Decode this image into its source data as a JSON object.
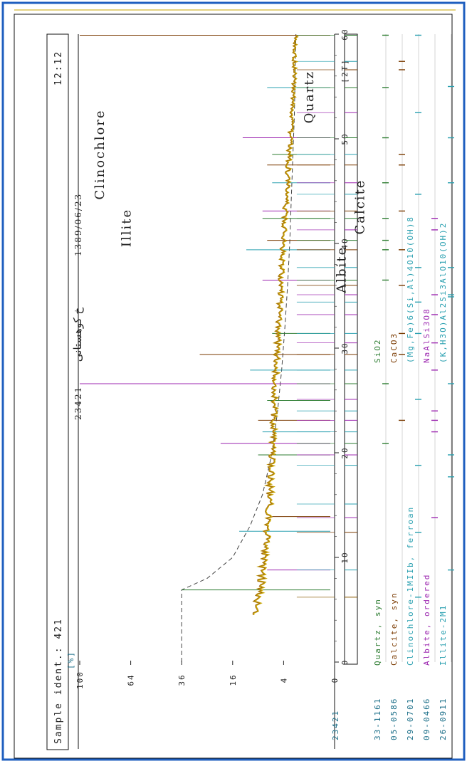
{
  "header": {
    "sample_ident": "Sample ident.: 421",
    "sample_number": "23421",
    "location": "خ کوهستانی",
    "date": "1389/06/23",
    "time": "12:12",
    "left_code": "23421"
  },
  "chart_data": {
    "type": "line",
    "title": "",
    "xlabel": "[2T]",
    "ylabel": "[%]",
    "xlim": [
      0,
      60
    ],
    "x_ticks": [
      0,
      10,
      20,
      30,
      40,
      50,
      60
    ],
    "y_ticks": [
      0,
      4,
      16,
      36,
      64,
      100
    ],
    "y_scale": "sqrt",
    "grid": false,
    "series": [
      {
        "type": "profile",
        "x": [
          4.5,
          6,
          7,
          8,
          9,
          10,
          11,
          12,
          13,
          14,
          15,
          16,
          17,
          18,
          19,
          20,
          21,
          22,
          23,
          24,
          25,
          26,
          27,
          28,
          29,
          30,
          31,
          32,
          33,
          34,
          35,
          36,
          37,
          38,
          39,
          40,
          41,
          42,
          43,
          44,
          45,
          46,
          47,
          48,
          49,
          50,
          51,
          52,
          53,
          54,
          55,
          56,
          57,
          58,
          59,
          60
        ],
        "y": [
          10,
          9,
          8.5,
          8,
          7.8,
          7.5,
          7.2,
          7,
          6.8,
          6.6,
          6.5,
          6.4,
          6.3,
          6.2,
          6.1,
          6,
          5.9,
          5.8,
          5.7,
          5.6,
          5.5,
          5.4,
          5.3,
          5.2,
          5.1,
          5,
          4.9,
          4.8,
          4.7,
          4.6,
          4.5,
          4.4,
          4.3,
          4.2,
          4.1,
          4,
          3.9,
          3.8,
          3.7,
          3.6,
          3.5,
          3.4,
          3.3,
          3.2,
          3.1,
          3,
          2.9,
          2.8,
          2.7,
          2.6,
          2.6,
          2.5,
          2.5,
          2.4,
          2.4,
          2.3
        ]
      },
      {
        "type": "background",
        "x": [
          0,
          6.9,
          8,
          10,
          13,
          16,
          20,
          24,
          28,
          32,
          36,
          40,
          44,
          48,
          52,
          56,
          60
        ],
        "y": [
          36,
          36,
          25,
          16,
          11,
          8,
          6,
          5,
          4.3,
          3.8,
          3.4,
          3.1,
          2.9,
          2.7,
          2.5,
          2.4,
          2.3
        ]
      }
    ],
    "peaks": [
      {
        "x": 6.9,
        "y": 36
      },
      {
        "x": 8.8,
        "y": 7
      },
      {
        "x": 12.5,
        "y": 14
      },
      {
        "x": 13.9,
        "y": 6
      },
      {
        "x": 19.8,
        "y": 9
      },
      {
        "x": 20.9,
        "y": 20
      },
      {
        "x": 22.0,
        "y": 8
      },
      {
        "x": 23.1,
        "y": 9
      },
      {
        "x": 25.0,
        "y": 7
      },
      {
        "x": 26.6,
        "y": 100
      },
      {
        "x": 27.9,
        "y": 11
      },
      {
        "x": 29.4,
        "y": 28
      },
      {
        "x": 31.4,
        "y": 6
      },
      {
        "x": 36.5,
        "y": 8
      },
      {
        "x": 39.4,
        "y": 12
      },
      {
        "x": 40.3,
        "y": 7
      },
      {
        "x": 42.4,
        "y": 8
      },
      {
        "x": 43.1,
        "y": 8
      },
      {
        "x": 45.8,
        "y": 6
      },
      {
        "x": 47.5,
        "y": 7
      },
      {
        "x": 48.5,
        "y": 6
      },
      {
        "x": 50.1,
        "y": 13
      },
      {
        "x": 54.9,
        "y": 7
      },
      {
        "x": 59.9,
        "y": 100
      }
    ],
    "stick_lines": [
      {
        "x": 6.2,
        "color": "#8a5a00"
      },
      {
        "x": 8.8,
        "color": "#2aa0b0"
      },
      {
        "x": 12.4,
        "color": "#7a3a00"
      },
      {
        "x": 13.8,
        "color": "#9c27b0"
      },
      {
        "x": 15.1,
        "color": "#2aa0b0"
      },
      {
        "x": 18.8,
        "color": "#2aa0b0"
      },
      {
        "x": 19.8,
        "color": "#9c27b0"
      },
      {
        "x": 20.9,
        "color": "#2e7d32"
      },
      {
        "x": 22.0,
        "color": "#2aa0b0"
      },
      {
        "x": 23.1,
        "color": "#9c27b0"
      },
      {
        "x": 24.0,
        "color": "#2aa0b0"
      },
      {
        "x": 25.1,
        "color": "#9c27b0"
      },
      {
        "x": 26.6,
        "color": "#2e7d32"
      },
      {
        "x": 27.9,
        "color": "#2aa0b0"
      },
      {
        "x": 29.4,
        "color": "#7a3a00"
      },
      {
        "x": 30.5,
        "color": "#9c27b0"
      },
      {
        "x": 31.4,
        "color": "#2aa0b0"
      },
      {
        "x": 33.2,
        "color": "#9c27b0"
      },
      {
        "x": 34.4,
        "color": "#2aa0b0"
      },
      {
        "x": 35.1,
        "color": "#9c27b0"
      },
      {
        "x": 36.0,
        "color": "#7a3a00"
      },
      {
        "x": 36.5,
        "color": "#2e7d32"
      },
      {
        "x": 37.7,
        "color": "#2aa0b0"
      },
      {
        "x": 39.4,
        "color": "#7a3a00"
      },
      {
        "x": 40.3,
        "color": "#2e7d32"
      },
      {
        "x": 41.3,
        "color": "#9c27b0"
      },
      {
        "x": 42.4,
        "color": "#2e7d32"
      },
      {
        "x": 43.1,
        "color": "#7a3a00"
      },
      {
        "x": 44.7,
        "color": "#2aa0b0"
      },
      {
        "x": 45.8,
        "color": "#9c27b0"
      },
      {
        "x": 47.5,
        "color": "#7a3a00"
      },
      {
        "x": 48.5,
        "color": "#2aa0b0"
      },
      {
        "x": 50.1,
        "color": "#2e7d32"
      },
      {
        "x": 52.5,
        "color": "#9c27b0"
      },
      {
        "x": 54.9,
        "color": "#2e7d32"
      },
      {
        "x": 56.6,
        "color": "#7a3a00"
      },
      {
        "x": 57.4,
        "color": "#2aa0b0"
      },
      {
        "x": 59.9,
        "color": "#2e7d32"
      }
    ],
    "annotations": [
      {
        "text": "Clinochlore",
        "x": 48.5,
        "y": 82
      },
      {
        "text": "Illite",
        "x": 41.5,
        "y": 64
      },
      {
        "text": "Quartz",
        "x": 54,
        "y": 0.7
      },
      {
        "text": "Calcite",
        "x": 43.5,
        "y": -1.6
      },
      {
        "text": "Albite",
        "x": 37.5,
        "y": -0.6
      }
    ]
  },
  "phases": [
    {
      "code": "33-1161",
      "name": "Quartz, syn",
      "formula": "SiO2",
      "color": "#2e7d32",
      "ticks": [
        20.9,
        26.6,
        36.5,
        39.4,
        40.3,
        42.4,
        45.8,
        50.1,
        54.9,
        59.9
      ]
    },
    {
      "code": "05-0586",
      "name": "Calcite, syn",
      "formula": "CaCO3",
      "color": "#7a3a00",
      "ticks": [
        23.1,
        29.4,
        31.4,
        36.0,
        39.4,
        43.1,
        47.5,
        48.5,
        56.6,
        57.4
      ]
    },
    {
      "code": "29-0701",
      "name": "Clinochlore-1MIIb, ferroan",
      "formula": "(Mg,Fe)6(Si,Al)4O10(OH)8",
      "color": "#2aa0b0",
      "ticks": [
        6.2,
        12.4,
        18.8,
        25.1,
        31.4,
        34.4,
        37.7,
        44.7,
        52.5,
        59.9
      ]
    },
    {
      "code": "09-0466",
      "name": "Albite, ordered",
      "formula": "NaAlSi3O8",
      "color": "#9c27b0",
      "ticks": [
        13.8,
        22.0,
        23.1,
        24.0,
        27.9,
        30.5,
        33.2,
        35.1,
        41.3,
        42.4
      ]
    },
    {
      "code": "26-0911",
      "name": "Illite-2M1",
      "formula": "(K,H3O)Al2Si3AlO10(OH)2",
      "color": "#2aa0b0",
      "ticks": [
        8.8,
        17.7,
        19.8,
        26.6,
        34.9,
        35.1,
        37.7,
        45.8,
        50.1,
        55.0
      ]
    }
  ],
  "colors": {
    "frame": "#1f5fbf",
    "axis": "#222222",
    "profile": "#c8a400",
    "profile_dark": "#7a2e2e"
  }
}
